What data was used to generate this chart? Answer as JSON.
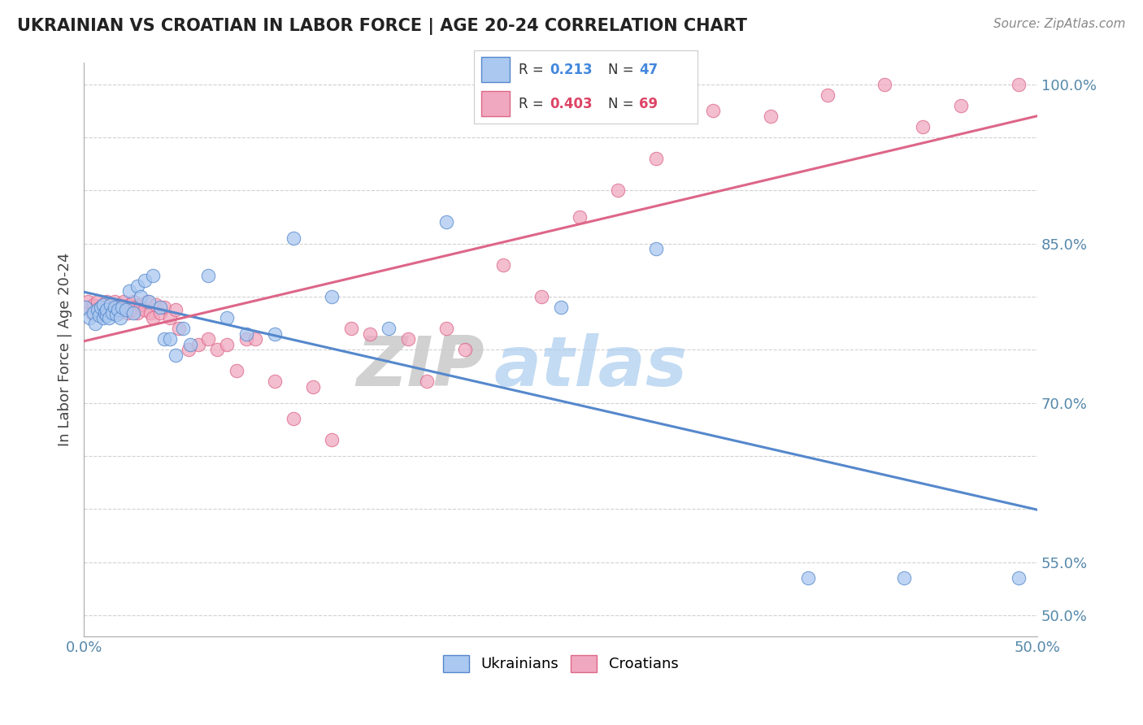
{
  "title": "UKRAINIAN VS CROATIAN IN LABOR FORCE | AGE 20-24 CORRELATION CHART",
  "source_text": "Source: ZipAtlas.com",
  "ylabel": "In Labor Force | Age 20-24",
  "xlim": [
    0.0,
    0.5
  ],
  "ylim": [
    0.48,
    1.02
  ],
  "x_ticks": [
    0.0,
    0.05,
    0.1,
    0.15,
    0.2,
    0.25,
    0.3,
    0.35,
    0.4,
    0.45,
    0.5
  ],
  "y_ticks": [
    0.5,
    0.55,
    0.6,
    0.65,
    0.7,
    0.75,
    0.8,
    0.85,
    0.9,
    0.95,
    1.0
  ],
  "legend_r_blue": "0.213",
  "legend_n_blue": "47",
  "legend_r_pink": "0.403",
  "legend_n_pink": "69",
  "blue_color": "#aac8f0",
  "pink_color": "#f0a8c0",
  "blue_line_color": "#5588cc",
  "pink_line_color": "#dd6688",
  "watermark_zip": "ZIP",
  "watermark_atlas": "atlas",
  "background_color": "#ffffff",
  "grid_color": "#cccccc",
  "blue_scatter_x": [
    0.001,
    0.003,
    0.005,
    0.006,
    0.007,
    0.008,
    0.009,
    0.01,
    0.01,
    0.011,
    0.012,
    0.012,
    0.013,
    0.014,
    0.015,
    0.016,
    0.017,
    0.018,
    0.019,
    0.02,
    0.022,
    0.024,
    0.026,
    0.028,
    0.03,
    0.032,
    0.034,
    0.036,
    0.04,
    0.042,
    0.045,
    0.048,
    0.052,
    0.056,
    0.065,
    0.075,
    0.085,
    0.1,
    0.11,
    0.13,
    0.16,
    0.19,
    0.25,
    0.3,
    0.38,
    0.43,
    0.49
  ],
  "blue_scatter_y": [
    0.79,
    0.78,
    0.785,
    0.775,
    0.788,
    0.782,
    0.79,
    0.78,
    0.792,
    0.785,
    0.782,
    0.788,
    0.78,
    0.792,
    0.785,
    0.79,
    0.783,
    0.788,
    0.78,
    0.79,
    0.788,
    0.805,
    0.785,
    0.81,
    0.8,
    0.815,
    0.795,
    0.82,
    0.79,
    0.76,
    0.76,
    0.745,
    0.77,
    0.755,
    0.82,
    0.78,
    0.765,
    0.765,
    0.855,
    0.8,
    0.77,
    0.87,
    0.79,
    0.845,
    0.535,
    0.535,
    0.535
  ],
  "pink_scatter_x": [
    0.001,
    0.002,
    0.004,
    0.005,
    0.006,
    0.007,
    0.008,
    0.009,
    0.01,
    0.011,
    0.012,
    0.013,
    0.013,
    0.014,
    0.015,
    0.016,
    0.017,
    0.018,
    0.019,
    0.02,
    0.021,
    0.022,
    0.023,
    0.024,
    0.025,
    0.026,
    0.027,
    0.028,
    0.03,
    0.032,
    0.033,
    0.035,
    0.036,
    0.038,
    0.04,
    0.042,
    0.045,
    0.048,
    0.05,
    0.055,
    0.06,
    0.065,
    0.07,
    0.075,
    0.08,
    0.085,
    0.09,
    0.1,
    0.11,
    0.12,
    0.13,
    0.14,
    0.15,
    0.17,
    0.18,
    0.19,
    0.2,
    0.22,
    0.24,
    0.26,
    0.28,
    0.3,
    0.33,
    0.36,
    0.39,
    0.42,
    0.44,
    0.46,
    0.49
  ],
  "pink_scatter_y": [
    0.79,
    0.795,
    0.785,
    0.792,
    0.788,
    0.795,
    0.785,
    0.79,
    0.792,
    0.788,
    0.795,
    0.79,
    0.785,
    0.792,
    0.788,
    0.795,
    0.79,
    0.785,
    0.792,
    0.788,
    0.795,
    0.79,
    0.785,
    0.792,
    0.788,
    0.795,
    0.79,
    0.785,
    0.792,
    0.788,
    0.795,
    0.785,
    0.78,
    0.792,
    0.785,
    0.79,
    0.78,
    0.788,
    0.77,
    0.75,
    0.755,
    0.76,
    0.75,
    0.755,
    0.73,
    0.76,
    0.76,
    0.72,
    0.685,
    0.715,
    0.665,
    0.77,
    0.765,
    0.76,
    0.72,
    0.77,
    0.75,
    0.83,
    0.8,
    0.875,
    0.9,
    0.93,
    0.975,
    0.97,
    0.99,
    1.0,
    0.96,
    0.98,
    1.0
  ]
}
